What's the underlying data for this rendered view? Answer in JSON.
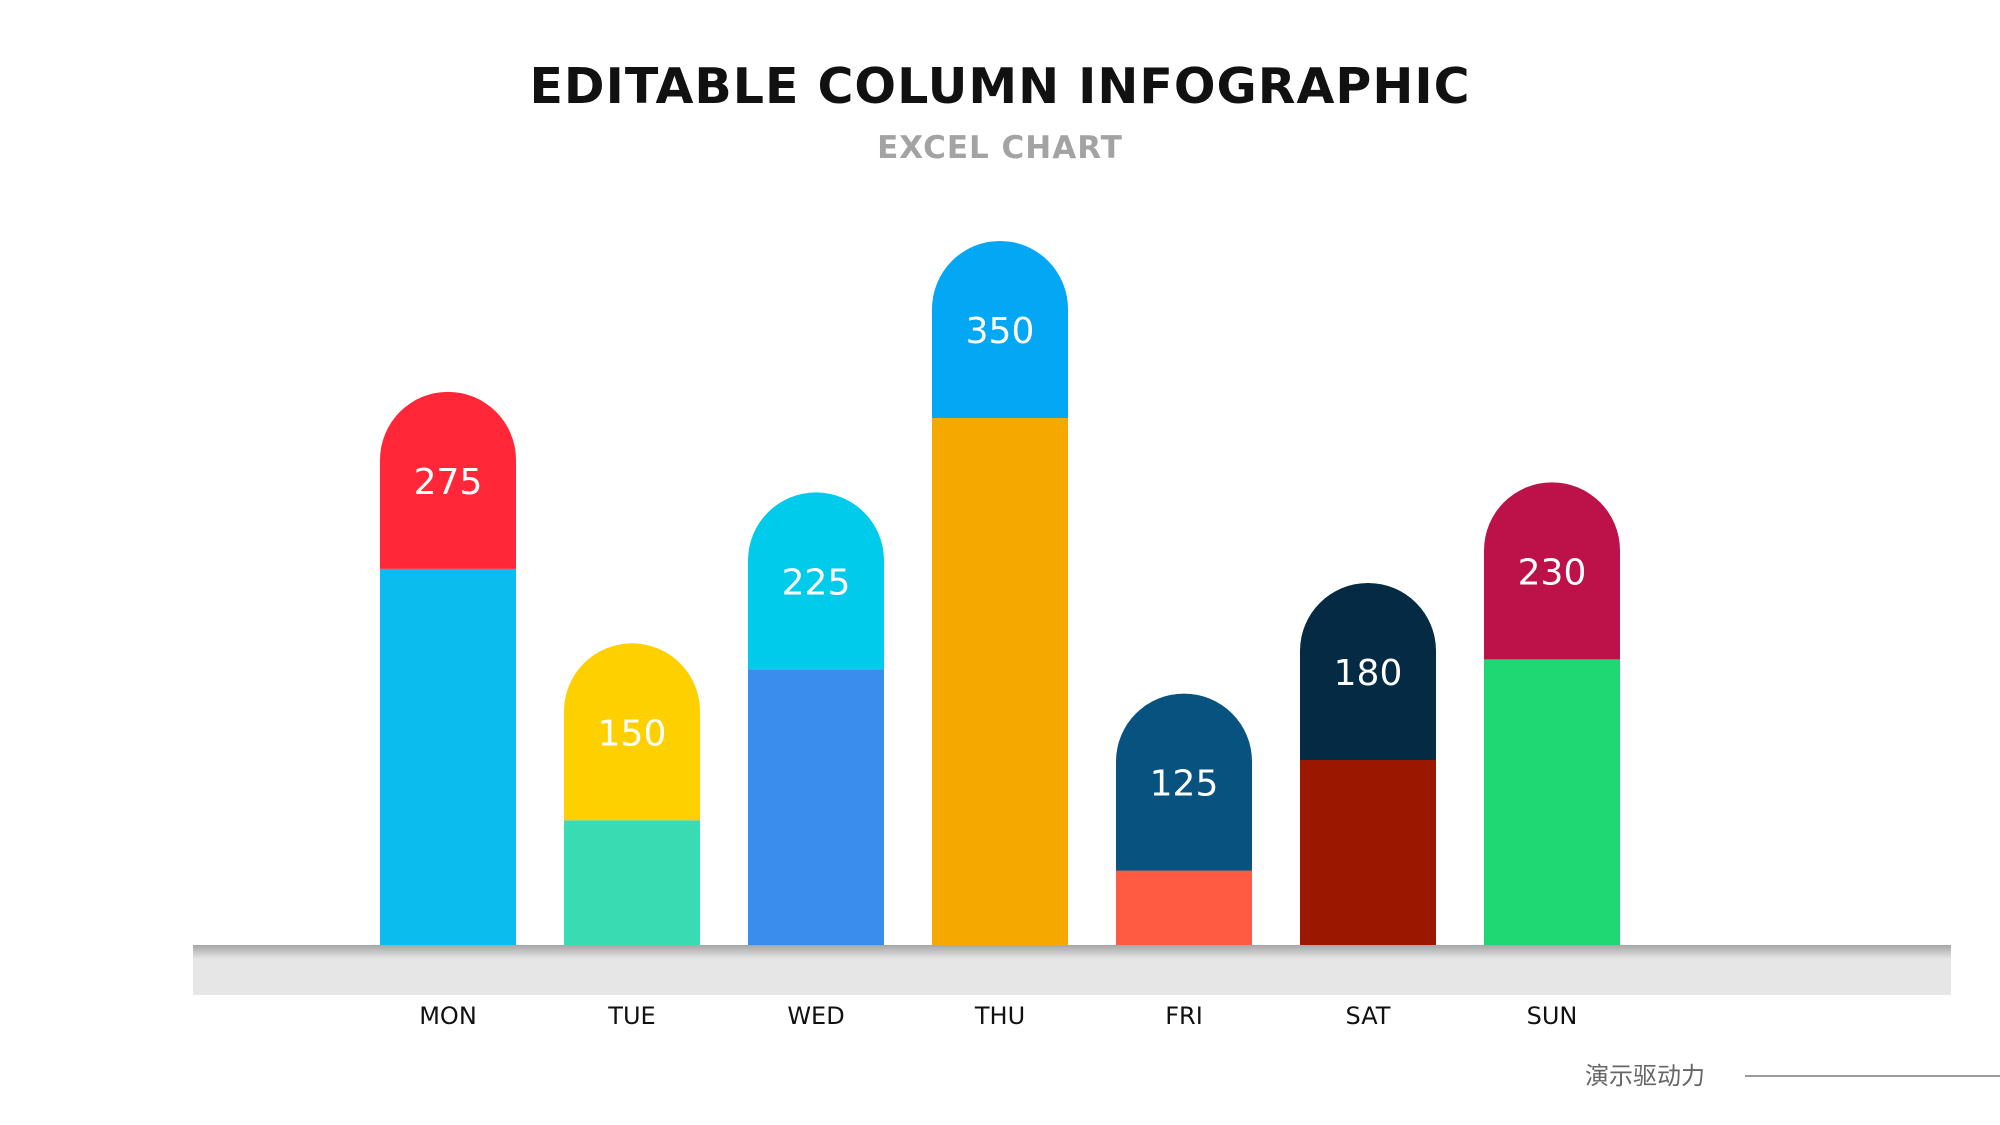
{
  "header": {
    "title": "EDITABLE COLUMN INFOGRAPHIC",
    "subtitle": "EXCEL CHART"
  },
  "footer": {
    "brand_text": "演示驱动力"
  },
  "chart_data": {
    "type": "bar",
    "title": "EDITABLE COLUMN INFOGRAPHIC",
    "subtitle": "EXCEL CHART",
    "categories": [
      "MON",
      "TUE",
      "WED",
      "THU",
      "FRI",
      "SAT",
      "SUN"
    ],
    "values": [
      275,
      150,
      225,
      350,
      125,
      180,
      230
    ],
    "data_labels": [
      "275",
      "150",
      "225",
      "350",
      "125",
      "180",
      "230"
    ],
    "ylim": [
      0,
      350
    ],
    "grid": false,
    "legend": "none",
    "cap_colors": [
      "#ff2738",
      "#ffd000",
      "#00cbea",
      "#04a7f3",
      "#07527f",
      "#042a44",
      "#bd114a"
    ],
    "body_colors": [
      "#0bbcef",
      "#39dbb3",
      "#3a8ced",
      "#f5a900",
      "#ff5a42",
      "#9c1700",
      "#1fd874"
    ],
    "label_color": "#ffffff",
    "base_color": "#e6e6e6",
    "category_label_color": "#111111"
  }
}
